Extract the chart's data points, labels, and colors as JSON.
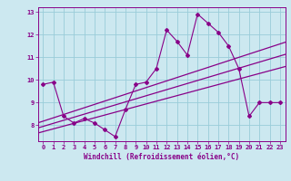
{
  "xlabel": "Windchill (Refroidissement éolien,°C)",
  "background_color": "#cce8f0",
  "grid_color": "#99ccd9",
  "line_color": "#880088",
  "x_hours": [
    0,
    1,
    2,
    3,
    4,
    5,
    6,
    7,
    8,
    9,
    10,
    11,
    12,
    13,
    14,
    15,
    16,
    17,
    18,
    19,
    20,
    21,
    22,
    23
  ],
  "windchill": [
    9.8,
    9.9,
    8.4,
    8.1,
    8.3,
    8.1,
    7.8,
    7.5,
    8.7,
    9.8,
    9.9,
    10.5,
    12.2,
    11.7,
    11.1,
    12.9,
    12.5,
    12.1,
    11.5,
    10.5,
    8.4,
    9.0,
    9.0,
    9.0
  ],
  "ylim": [
    7.3,
    13.2
  ],
  "yticks": [
    8,
    9,
    10,
    11,
    12,
    13
  ],
  "xlim": [
    -0.5,
    23.5
  ],
  "xticks": [
    0,
    1,
    2,
    3,
    4,
    5,
    6,
    7,
    8,
    9,
    10,
    11,
    12,
    13,
    14,
    15,
    16,
    17,
    18,
    19,
    20,
    21,
    22,
    23
  ],
  "reg_slope_upper": 0.148,
  "reg_intercept_upper": 8.18,
  "reg_slope_mid": 0.135,
  "reg_intercept_mid": 7.95,
  "reg_slope_lower": 0.122,
  "reg_intercept_lower": 7.72
}
